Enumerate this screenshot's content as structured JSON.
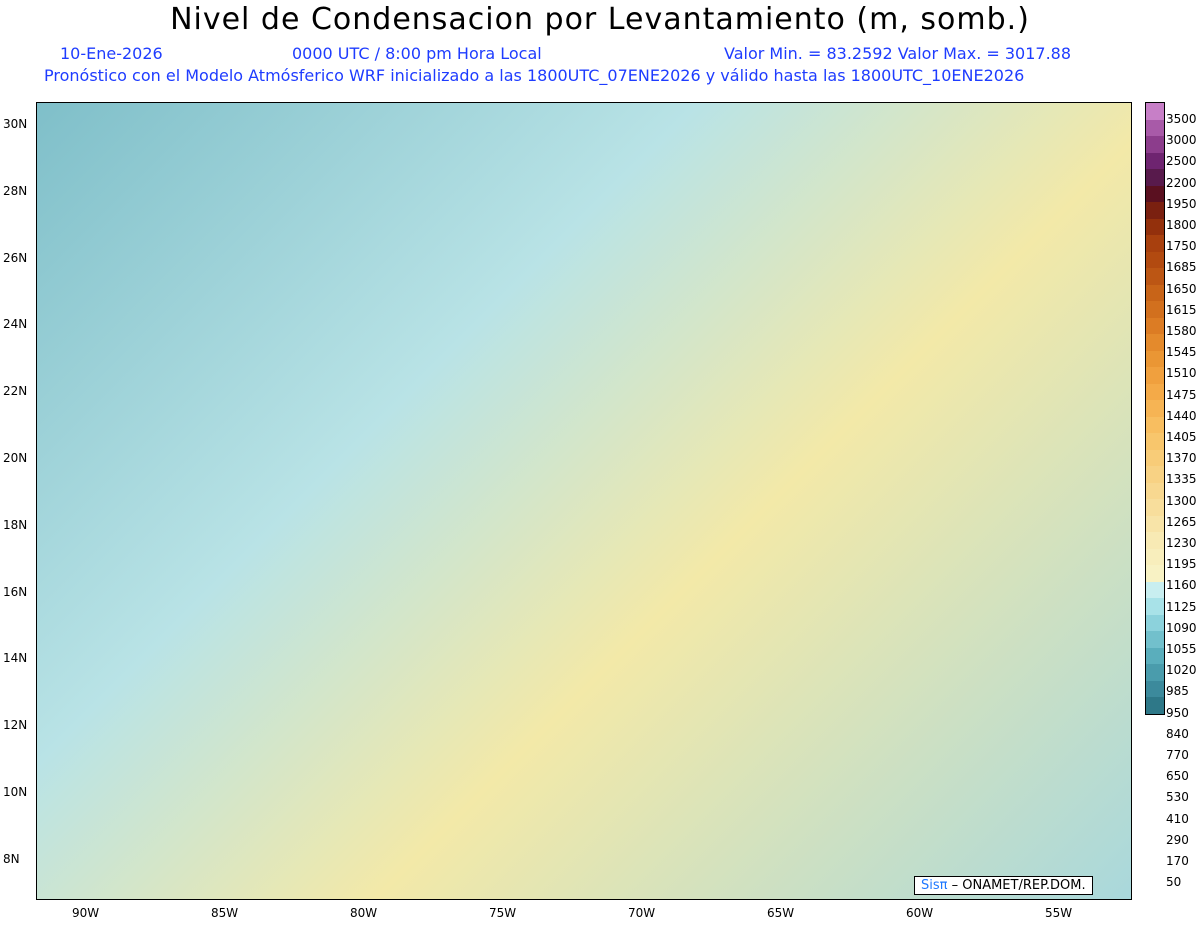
{
  "header": {
    "title": "Nivel de Condensacion por Levantamiento (m, somb.)",
    "date": "10-Ene-2026",
    "time": "0000 UTC / 8:00 pm Hora Local",
    "minmax": "Valor Min. = 83.2592   Valor Max. = 3017.88",
    "forecast": "Pronóstico con el Modelo Atmósferico WRF inicializado a las 1800UTC_07ENE2026 y válido hasta las  1800UTC_10ENE2026"
  },
  "axes": {
    "lat": [
      "30N",
      "28N",
      "26N",
      "24N",
      "22N",
      "20N",
      "18N",
      "16N",
      "14N",
      "12N",
      "10N",
      "8N"
    ],
    "lon": [
      "90W",
      "85W",
      "80W",
      "75W",
      "70W",
      "65W",
      "60W",
      "55W"
    ]
  },
  "legend": {
    "labels": [
      "3500",
      "3000",
      "2500",
      "2200",
      "1950",
      "1800",
      "1750",
      "1685",
      "1650",
      "1615",
      "1580",
      "1545",
      "1510",
      "1475",
      "1440",
      "1405",
      "1370",
      "1335",
      "1300",
      "1265",
      "1230",
      "1195",
      "1160",
      "1125",
      "1090",
      "1055",
      "1020",
      "985",
      "950",
      "840",
      "770",
      "650",
      "530",
      "410",
      "290",
      "170",
      "50"
    ],
    "colors": [
      "#c77fc7",
      "#a85aa8",
      "#8c3d8c",
      "#6e2470",
      "#581a4c",
      "#5a1020",
      "#7a2010",
      "#93300c",
      "#a8400e",
      "#b24a10",
      "#bc5614",
      "#c86418",
      "#d2701e",
      "#dc7c24",
      "#e48a2c",
      "#ea9634",
      "#f0a03e",
      "#f4aa48",
      "#f6b454",
      "#f8be60",
      "#f8c66c",
      "#f8cc78",
      "#f8d284",
      "#f8d890",
      "#f8de9c",
      "#f8e4a8",
      "#f8eab4",
      "#f8eebc",
      "#f8f2c4",
      "#c8eef0",
      "#a8e2e8",
      "#8cd2dc",
      "#72c0cc",
      "#5aaebc",
      "#4a9cac",
      "#3c8a9c",
      "#2e7888"
    ]
  },
  "stamp": {
    "sis": "Sisπ",
    "text": "– ONAMET/REP.DOM."
  }
}
